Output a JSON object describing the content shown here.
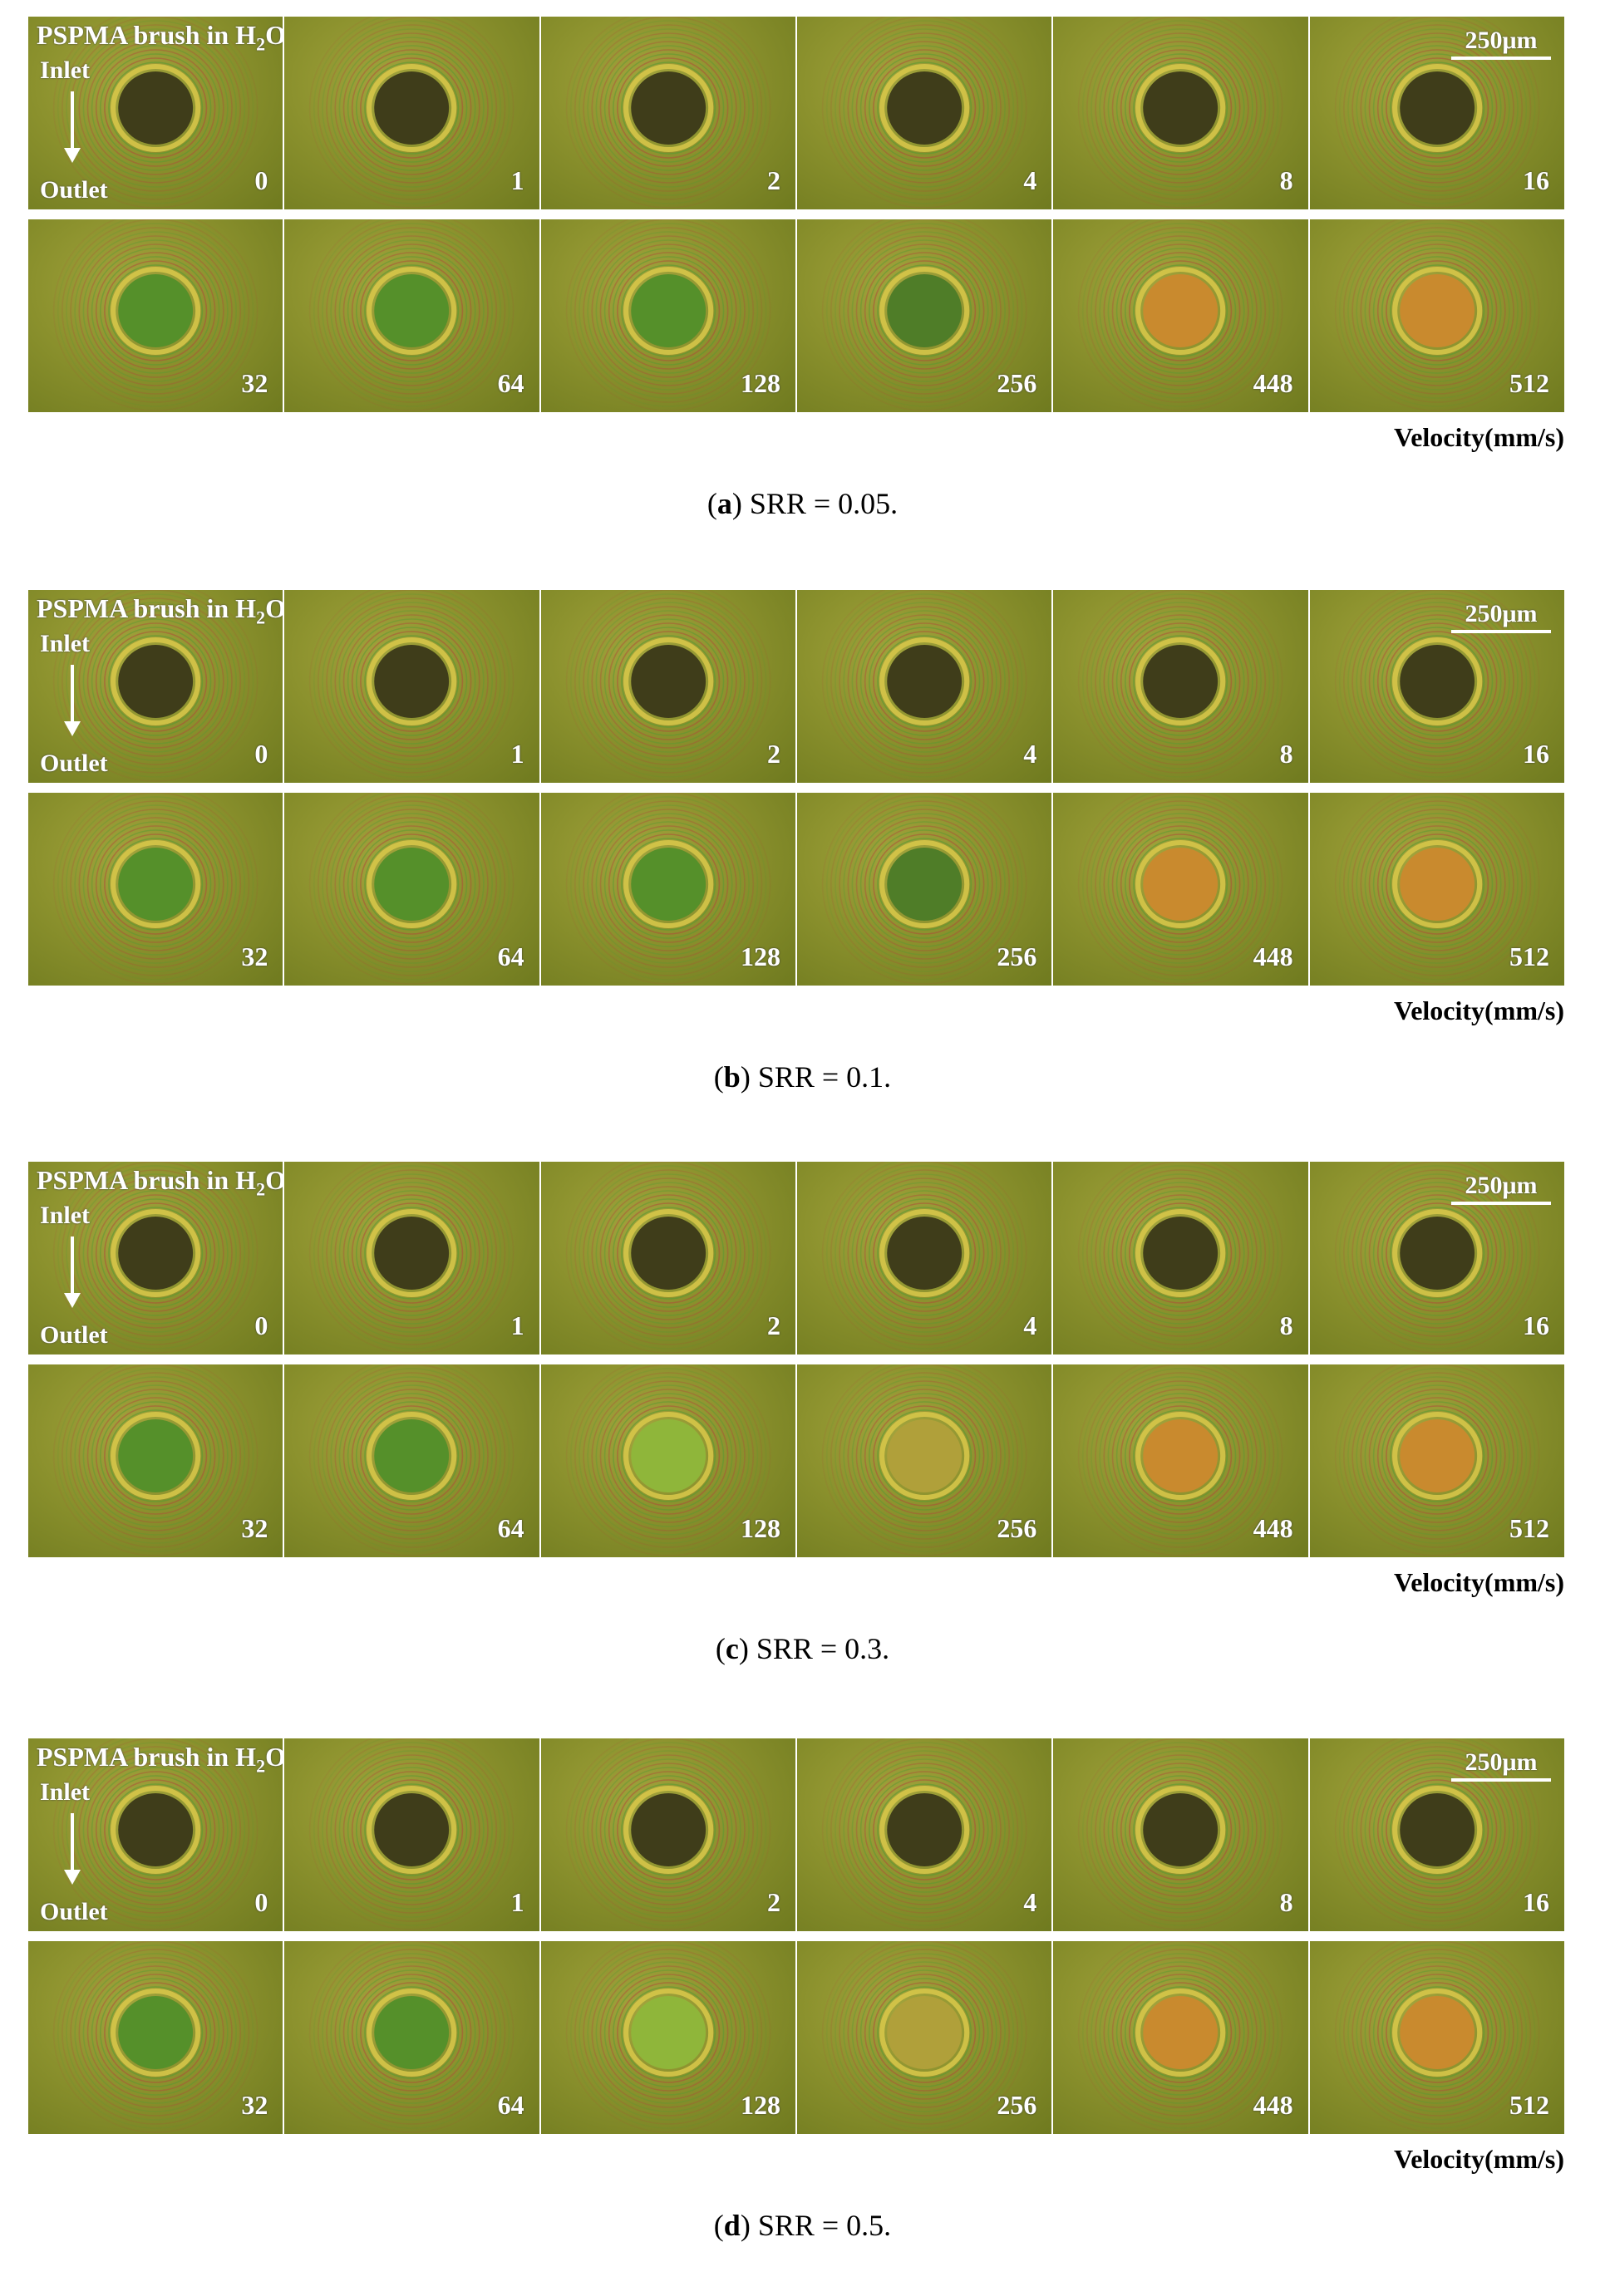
{
  "title_prefix": "PSPMA brush in H",
  "title_sub": "2",
  "title_suffix": "O",
  "inlet_label": "Inlet",
  "outlet_label": "Outlet",
  "scale_bar_label": "250μm",
  "velocity_unit_label": "Velocity(mm/s)",
  "velocities_row1": [
    "0",
    "1",
    "2",
    "4",
    "8",
    "16"
  ],
  "velocities_row2": [
    "32",
    "64",
    "128",
    "256",
    "448",
    "512"
  ],
  "panels": [
    {
      "letter": "a",
      "caption_rest": " SRR = 0.05."
    },
    {
      "letter": "b",
      "caption_rest": " SRR = 0.1."
    },
    {
      "letter": "c",
      "caption_rest": " SRR = 0.3."
    },
    {
      "letter": "d",
      "caption_rest": " SRR = 0.5."
    }
  ],
  "colors": {
    "background_olive": "#8b912d",
    "contact_dark": "#3f3d1a",
    "contact_green": "#55902a",
    "contact_orange": "#c98a2e",
    "ring_red": "#b0473a",
    "ring_green": "#4f9a33",
    "label_white": "#ffffff"
  }
}
